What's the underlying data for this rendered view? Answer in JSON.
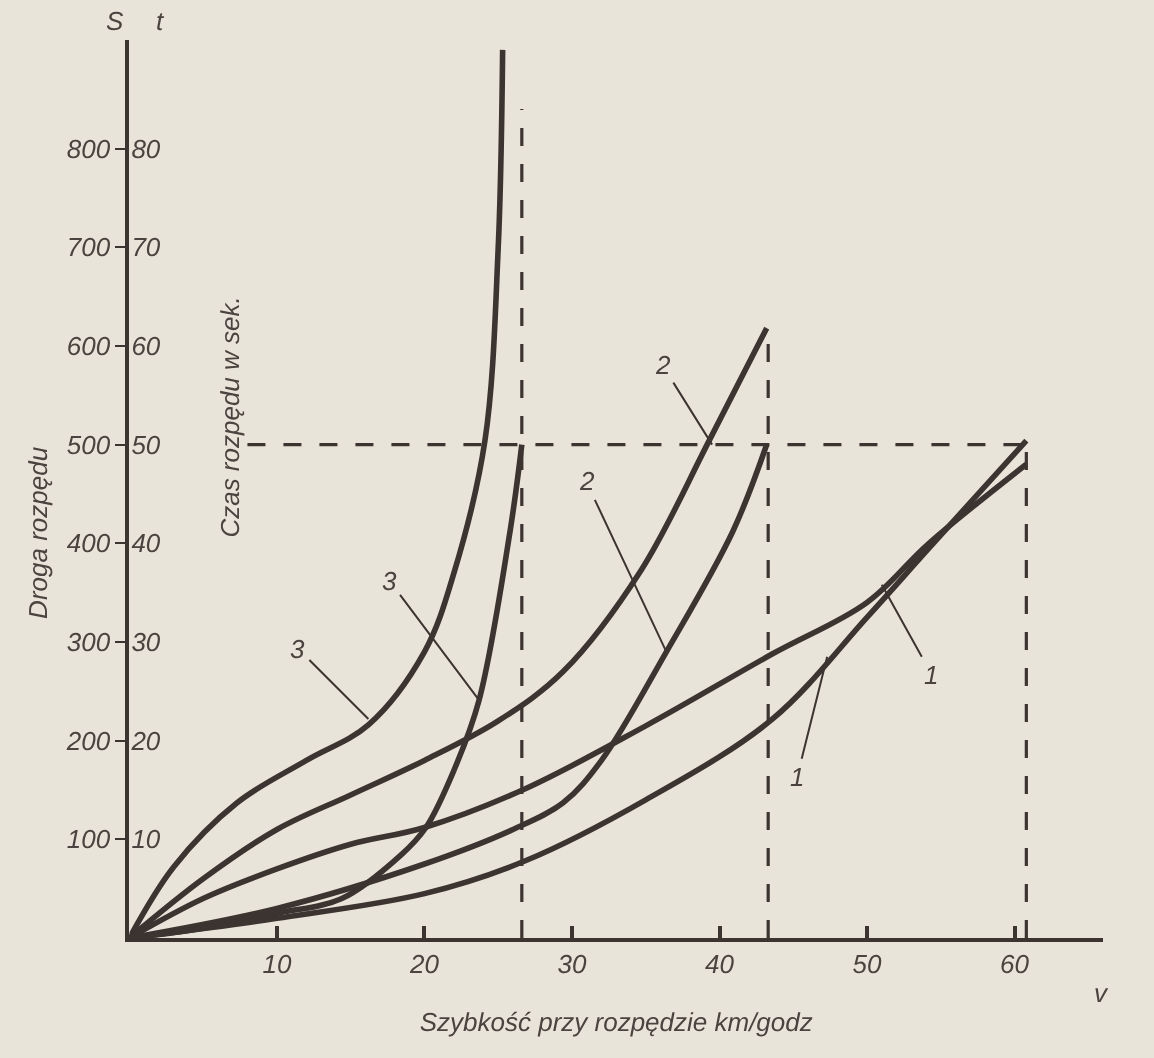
{
  "chart_data": {
    "type": "line",
    "xlabel": "Szybkość przy rozpędzie km/godz",
    "ylabel": "Droga rozpędu",
    "y2label": "Czas rozpędu w sek.",
    "xlim": [
      0,
      66
    ],
    "xticks": [
      10,
      20,
      30,
      40,
      50,
      60
    ],
    "ylim": [
      0,
      910
    ],
    "yticks": [
      100,
      200,
      300,
      400,
      500,
      600,
      700,
      800
    ],
    "y2lim": [
      0,
      91
    ],
    "y2ticks": [
      10,
      20,
      30,
      40,
      50,
      60,
      70,
      80
    ],
    "grid": false,
    "marker": "none",
    "series": [
      {
        "color": "#3b3431",
        "x": [
          0,
          3,
          7.3,
          12,
          16.2,
          20,
          22,
          24.1,
          25,
          25.3
        ],
        "values": [
          0,
          72,
          137,
          180,
          216,
          290,
          370,
          504,
          700,
          900
        ]
      },
      {
        "color": "#3b3431",
        "x": [
          0,
          5,
          10,
          14.4,
          18.4,
          20.1,
          22,
          23.7,
          25.8,
          26.6
        ],
        "values": [
          0,
          10,
          25,
          40,
          84,
          112,
          170,
          241,
          412,
          500
        ]
      },
      {
        "color": "#3b3431",
        "x": [
          0,
          5,
          10,
          15,
          20,
          25,
          29.4,
          34.7,
          39.3,
          43.2
        ],
        "values": [
          0,
          60,
          110,
          145,
          180,
          220,
          270,
          373,
          504,
          618
        ]
      },
      {
        "color": "#3b3431",
        "x": [
          0,
          10,
          20,
          26,
          29.4,
          32,
          36.4,
          40.9,
          43.2
        ],
        "values": [
          0,
          30,
          75,
          110,
          137,
          180,
          290,
          412,
          500
        ]
      },
      {
        "color": "#3b3431",
        "x": [
          0,
          5,
          10,
          15,
          20,
          26.8,
          35,
          43.6,
          50,
          54.2,
          60.8
        ],
        "values": [
          0,
          40,
          70,
          95,
          112,
          151,
          215,
          288,
          340,
          400,
          480
        ]
      },
      {
        "color": "#3b3431",
        "x": [
          0,
          10,
          20,
          26.8,
          35,
          43.6,
          50,
          54.2,
          60.8
        ],
        "values": [
          0,
          20,
          45,
          78,
          140,
          222,
          325,
          395,
          504
        ]
      },
      {
        "color": "#3b3431",
        "line_style": "dashed",
        "x": [
          8,
          60.8
        ],
        "values": [
          500,
          500
        ]
      },
      {
        "color": "#3b3431",
        "line_style": "dashed",
        "x": [
          26.6,
          26.6
        ],
        "values": [
          0,
          840
        ]
      },
      {
        "color": "#3b3431",
        "line_style": "dashed",
        "x": [
          43.3,
          43.3
        ],
        "values": [
          0,
          618
        ]
      },
      {
        "color": "#3b3431",
        "line_style": "dashed",
        "x": [
          60.8,
          60.8
        ],
        "values": [
          0,
          504
        ]
      }
    ],
    "annotations": [
      "S",
      "t",
      "v",
      {
        "text": "3",
        "x": 16.2,
        "y": 222
      },
      {
        "text": "3",
        "x": 23.7,
        "y": 241
      },
      {
        "text": "2",
        "x": 39.5,
        "y": 500
      },
      {
        "text": "2",
        "x": 36.4,
        "y": 290
      },
      {
        "text": "1",
        "x": 51,
        "y": 358
      },
      {
        "text": "1",
        "x": 47.3,
        "y": 285
      }
    ]
  }
}
